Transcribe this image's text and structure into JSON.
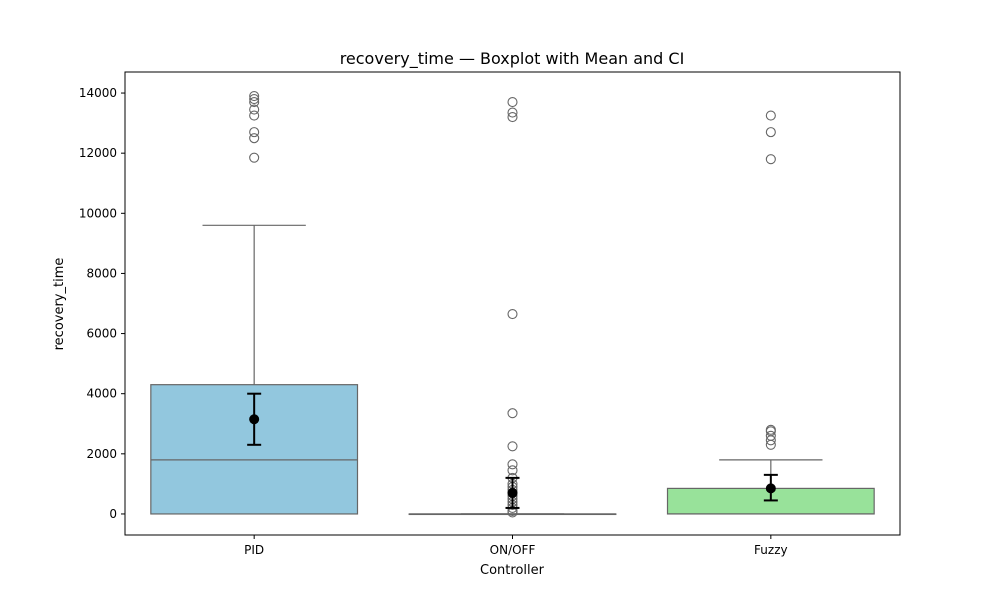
{
  "chart_data": {
    "type": "box",
    "title": "recovery_time — Boxplot with Mean and CI",
    "xlabel": "Controller",
    "ylabel": "recovery_time",
    "ylim": [
      -700,
      14700
    ],
    "yticks": [
      0,
      2000,
      4000,
      6000,
      8000,
      10000,
      12000,
      14000
    ],
    "grid": false,
    "categories": [
      "PID",
      "ON/OFF",
      "Fuzzy"
    ],
    "boxes": [
      {
        "category": "PID",
        "color": "#92c7de",
        "q1": 0,
        "median": 1800,
        "q3": 4300,
        "whisker_low": 0,
        "whisker_high": 9600,
        "mean": 3150,
        "ci": [
          2300,
          4000
        ],
        "outliers": [
          11850,
          12500,
          12700,
          13250,
          13450,
          13700,
          13800,
          13900
        ]
      },
      {
        "category": "ON/OFF",
        "color": "#92c7de",
        "q1": 0,
        "median": 0,
        "q3": 0,
        "whisker_low": 0,
        "whisker_high": 0,
        "mean": 700,
        "ci": [
          200,
          1200
        ],
        "outliers": [
          50,
          100,
          200,
          300,
          400,
          500,
          600,
          700,
          800,
          900,
          1000,
          1200,
          1450,
          1650,
          2250,
          3350,
          6650,
          13200,
          13350,
          13700
        ]
      },
      {
        "category": "Fuzzy",
        "color": "#98e29a",
        "q1": 0,
        "median": 0,
        "q3": 850,
        "whisker_low": 0,
        "whisker_high": 1800,
        "mean": 850,
        "ci": [
          450,
          1300
        ],
        "outliers": [
          2300,
          2450,
          2600,
          2750,
          2800,
          11800,
          12700,
          13250
        ]
      }
    ]
  }
}
